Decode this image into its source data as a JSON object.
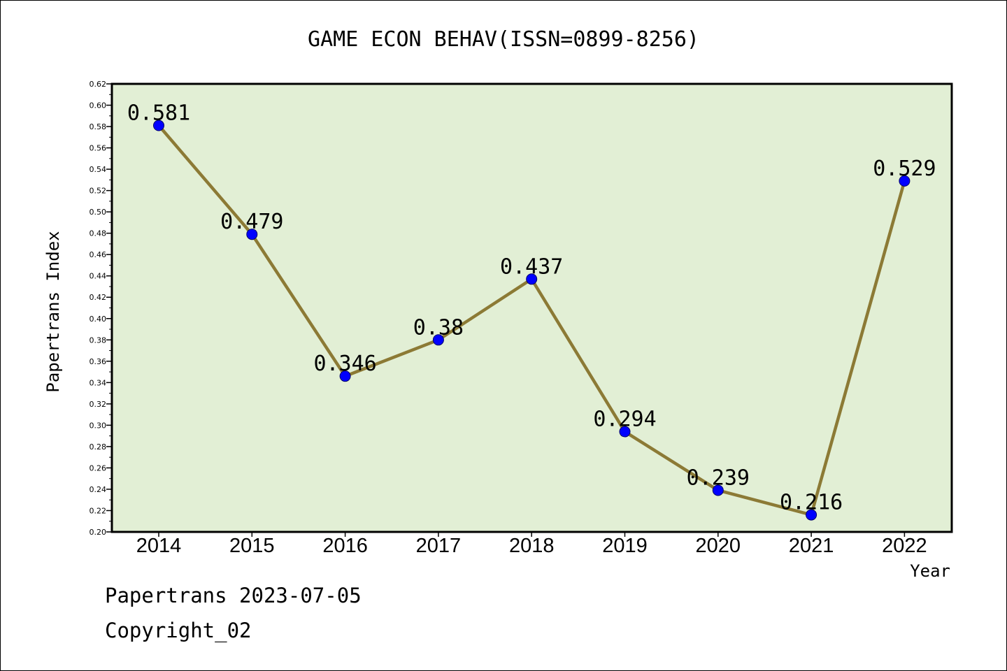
{
  "chart_data": {
    "type": "line",
    "title": "GAME ECON BEHAV(ISSN=0899-8256)",
    "xlabel": "Year",
    "ylabel": "Papertrans Index",
    "categories": [
      "2014",
      "2015",
      "2016",
      "2017",
      "2018",
      "2019",
      "2020",
      "2021",
      "2022"
    ],
    "series": [
      {
        "values": [
          0.581,
          0.479,
          0.346,
          0.38,
          0.437,
          0.294,
          0.239,
          0.216,
          0.529
        ],
        "data_labels": [
          "0.581",
          "0.479",
          "0.346",
          "0.38",
          "0.437",
          "0.294",
          "0.239",
          "0.216",
          "0.529"
        ]
      }
    ],
    "ylim": [
      0.2,
      0.62
    ],
    "yticks": [
      "0.20",
      "0.22",
      "0.24",
      "0.26",
      "0.28",
      "0.30",
      "0.32",
      "0.34",
      "0.36",
      "0.38",
      "0.40",
      "0.42",
      "0.44",
      "0.46",
      "0.48",
      "0.50",
      "0.52",
      "0.54",
      "0.56",
      "0.58",
      "0.60",
      "0.62"
    ],
    "grid": false,
    "colors": {
      "plot_background": "#e2efd5",
      "line": "#8c7a35",
      "marker": "#0000ff"
    }
  },
  "footer": {
    "line1": "Papertrans 2023-07-05",
    "line2": "Copyright_02"
  }
}
